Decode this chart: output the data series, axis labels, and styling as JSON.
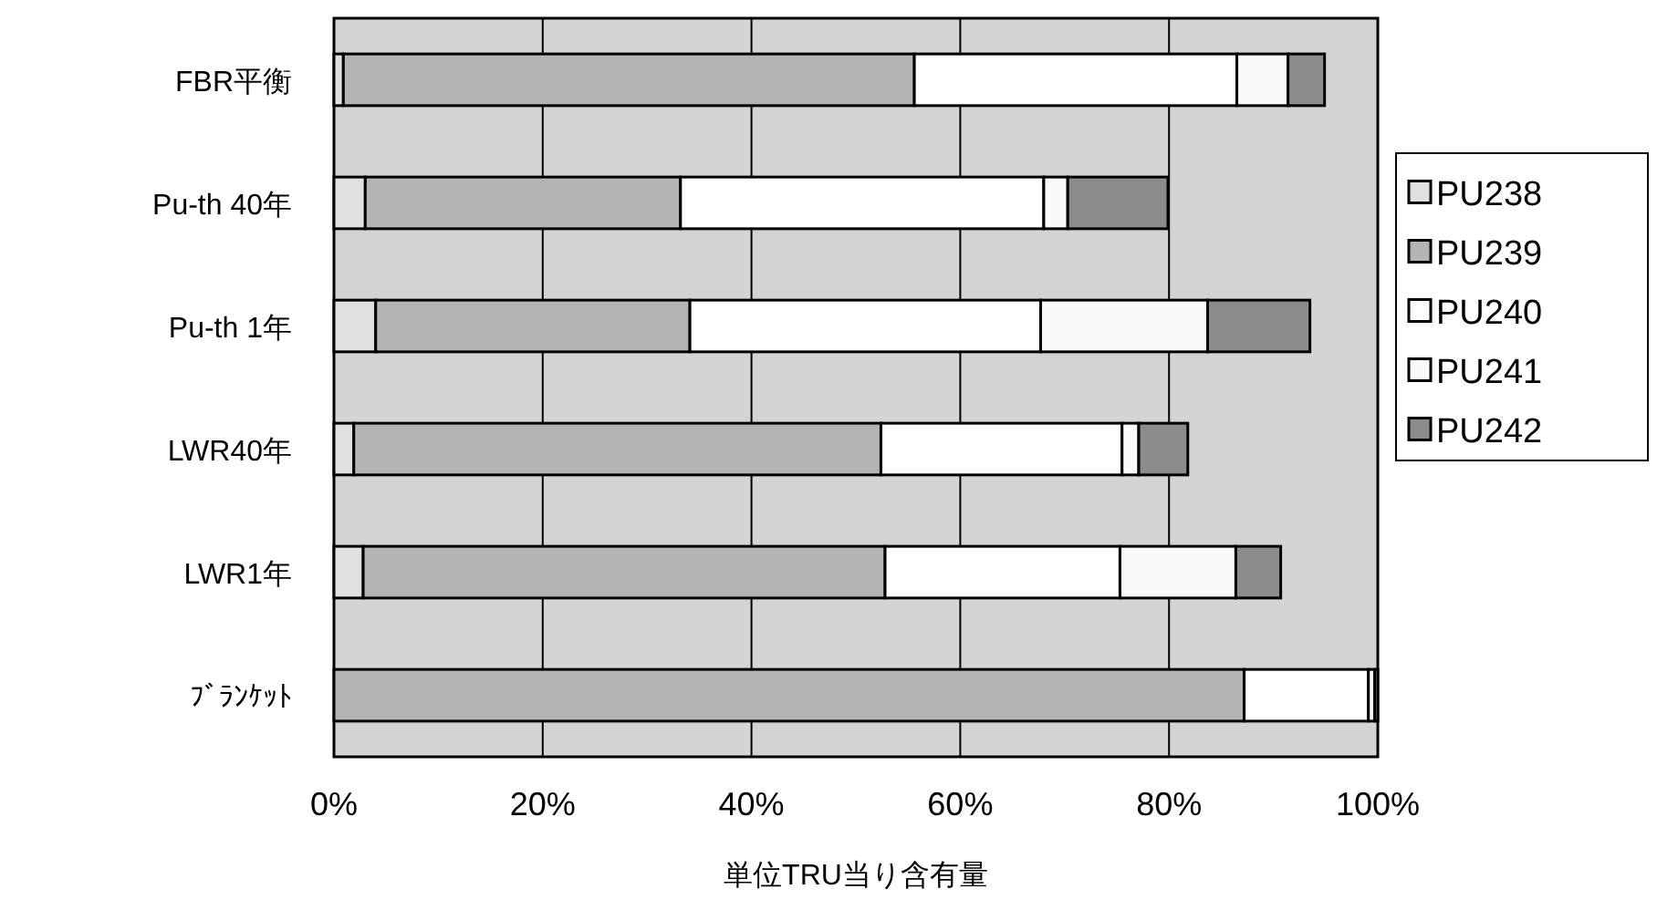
{
  "chart_data": {
    "type": "bar",
    "orientation": "horizontal",
    "stacked": true,
    "categories": [
      "FBR平衡",
      "Pu-th 40年",
      "Pu-th 1年",
      "LWR40年",
      "LWR1年",
      "ﾌﾞﾗﾝｹｯﾄ"
    ],
    "series": [
      {
        "name": "PU238",
        "color": "#e0e0e0",
        "values": [
          0.9,
          3.0,
          4.0,
          1.9,
          2.8,
          0
        ]
      },
      {
        "name": "PU239",
        "color": "#b4b4b4",
        "values": [
          54.7,
          30.2,
          30.1,
          50.5,
          50.0,
          87.2
        ]
      },
      {
        "name": "PU240",
        "color": "#ffffff",
        "values": [
          30.9,
          34.8,
          33.6,
          23.1,
          22.5,
          11.9
        ]
      },
      {
        "name": "PU241",
        "color": "#fafafa",
        "values": [
          4.9,
          2.3,
          16.0,
          1.6,
          11.1,
          0.6
        ]
      },
      {
        "name": "PU242",
        "color": "#8c8c8c",
        "values": [
          3.5,
          9.6,
          9.8,
          4.7,
          4.3,
          0.3
        ]
      }
    ],
    "xlim": [
      0,
      100
    ],
    "xticks": [
      {
        "value": 0,
        "label": "0%"
      },
      {
        "value": 20,
        "label": "20%"
      },
      {
        "value": 40,
        "label": "40%"
      },
      {
        "value": 60,
        "label": "60%"
      },
      {
        "value": 80,
        "label": "80%"
      },
      {
        "value": 100,
        "label": "100%"
      }
    ],
    "xlabel": "単位TRU当り含有量",
    "grid": "x",
    "legend": "right"
  }
}
